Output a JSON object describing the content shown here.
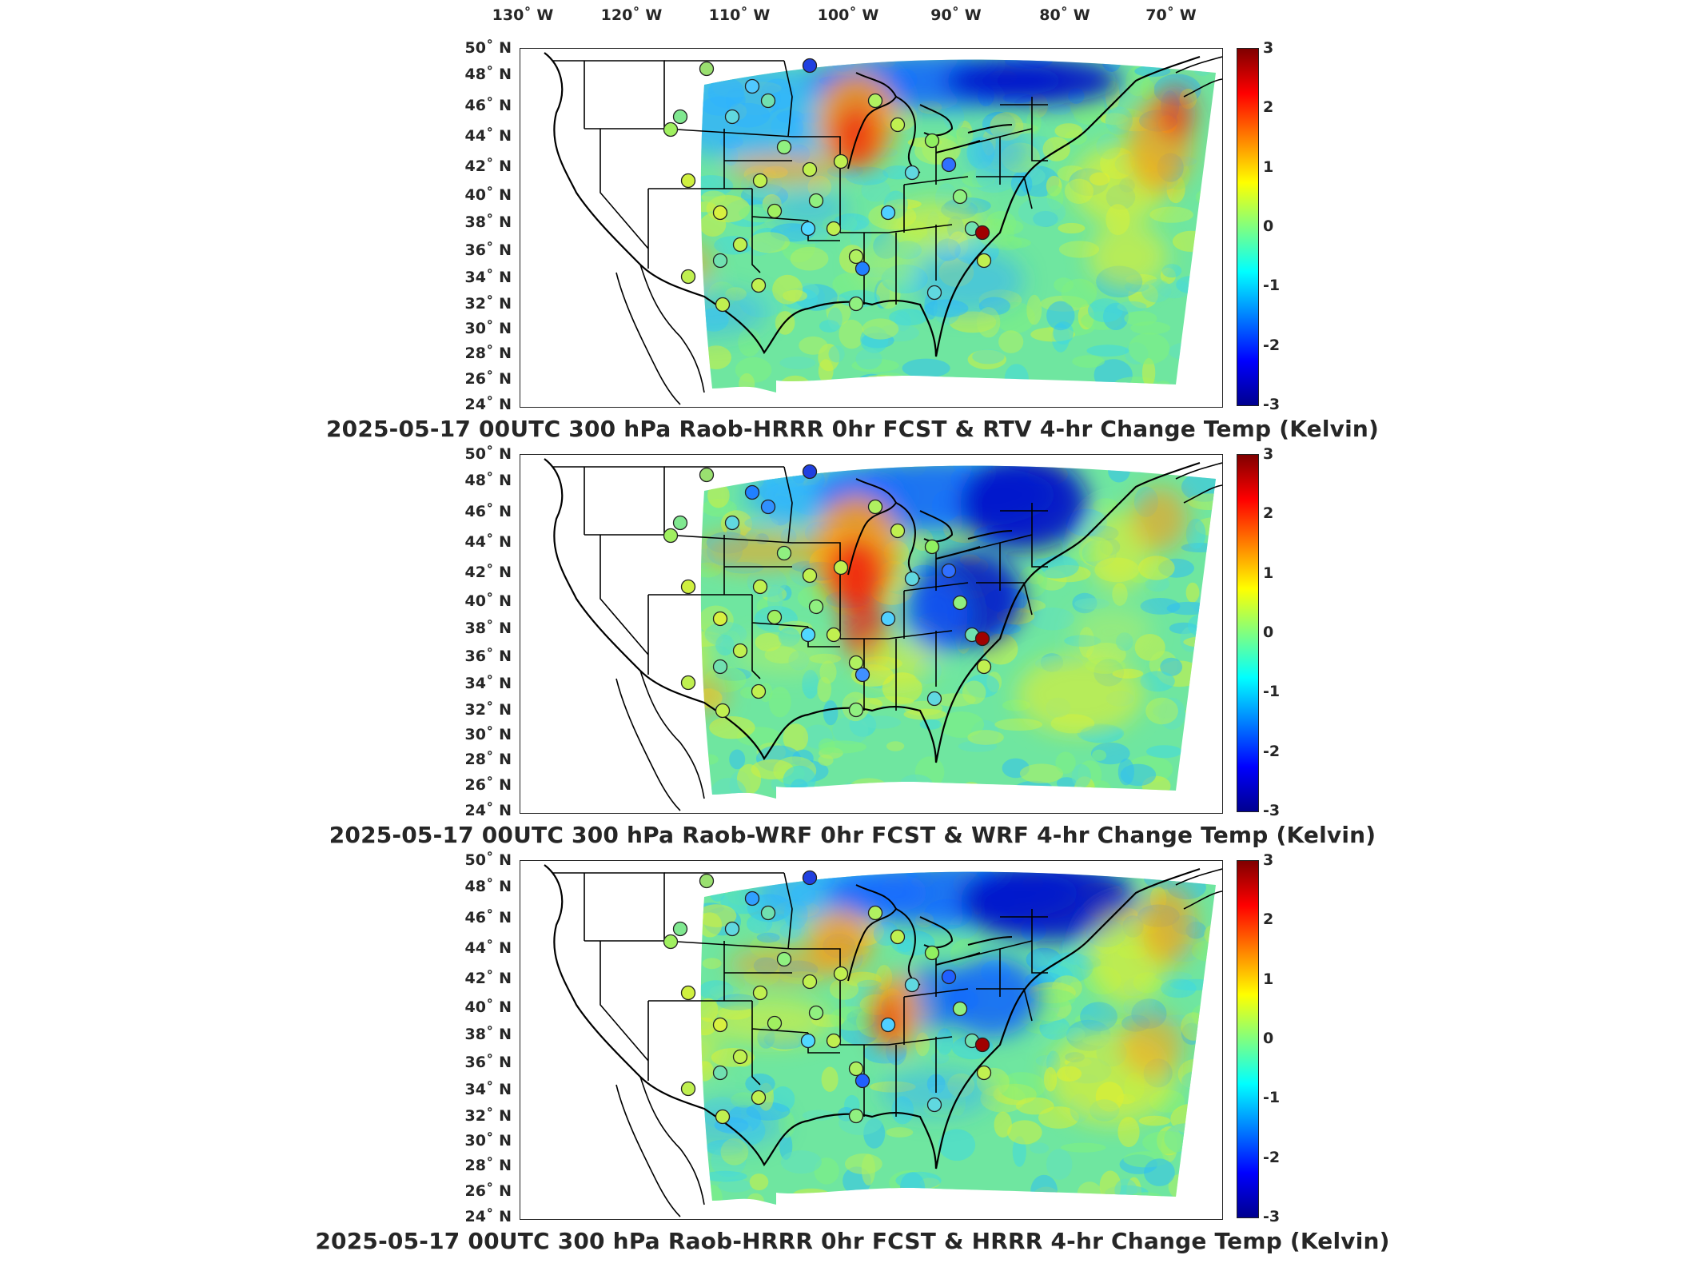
{
  "longitude_ticks": [
    "130˚ W",
    "120˚ W",
    "110˚ W",
    "100˚ W",
    "90˚ W",
    "80˚ W",
    "70˚ W"
  ],
  "latitude_ticks": [
    "50˚ N",
    "48˚ N",
    "46˚ N",
    "44˚ N",
    "42˚ N",
    "40˚ N",
    "38˚ N",
    "36˚ N",
    "34˚ N",
    "32˚ N",
    "30˚ N",
    "28˚ N",
    "26˚ N",
    "24˚ N"
  ],
  "colorbar_ticks": [
    "3",
    "2",
    "1",
    "0",
    "-1",
    "-2",
    "-3"
  ],
  "colorscale": [
    "#00008f",
    "#0000ff",
    "#0080ff",
    "#00ffff",
    "#80ff80",
    "#ffff00",
    "#ff8000",
    "#ff0000",
    "#800000"
  ],
  "panels": [
    {
      "title": "2025-05-17 00UTC 300 hPa Raob-HRRR 0hr FCST & RTV 4-hr Change Temp (Kelvin)"
    },
    {
      "title": "2025-05-17 00UTC 300 hPa Raob-WRF 0hr FCST & WRF 4-hr Change Temp (Kelvin)"
    },
    {
      "title": "2025-05-17 00UTC 300 hPa Raob-HRRR 0hr FCST & HRRR 4-hr Change Temp (Kelvin)"
    }
  ]
}
